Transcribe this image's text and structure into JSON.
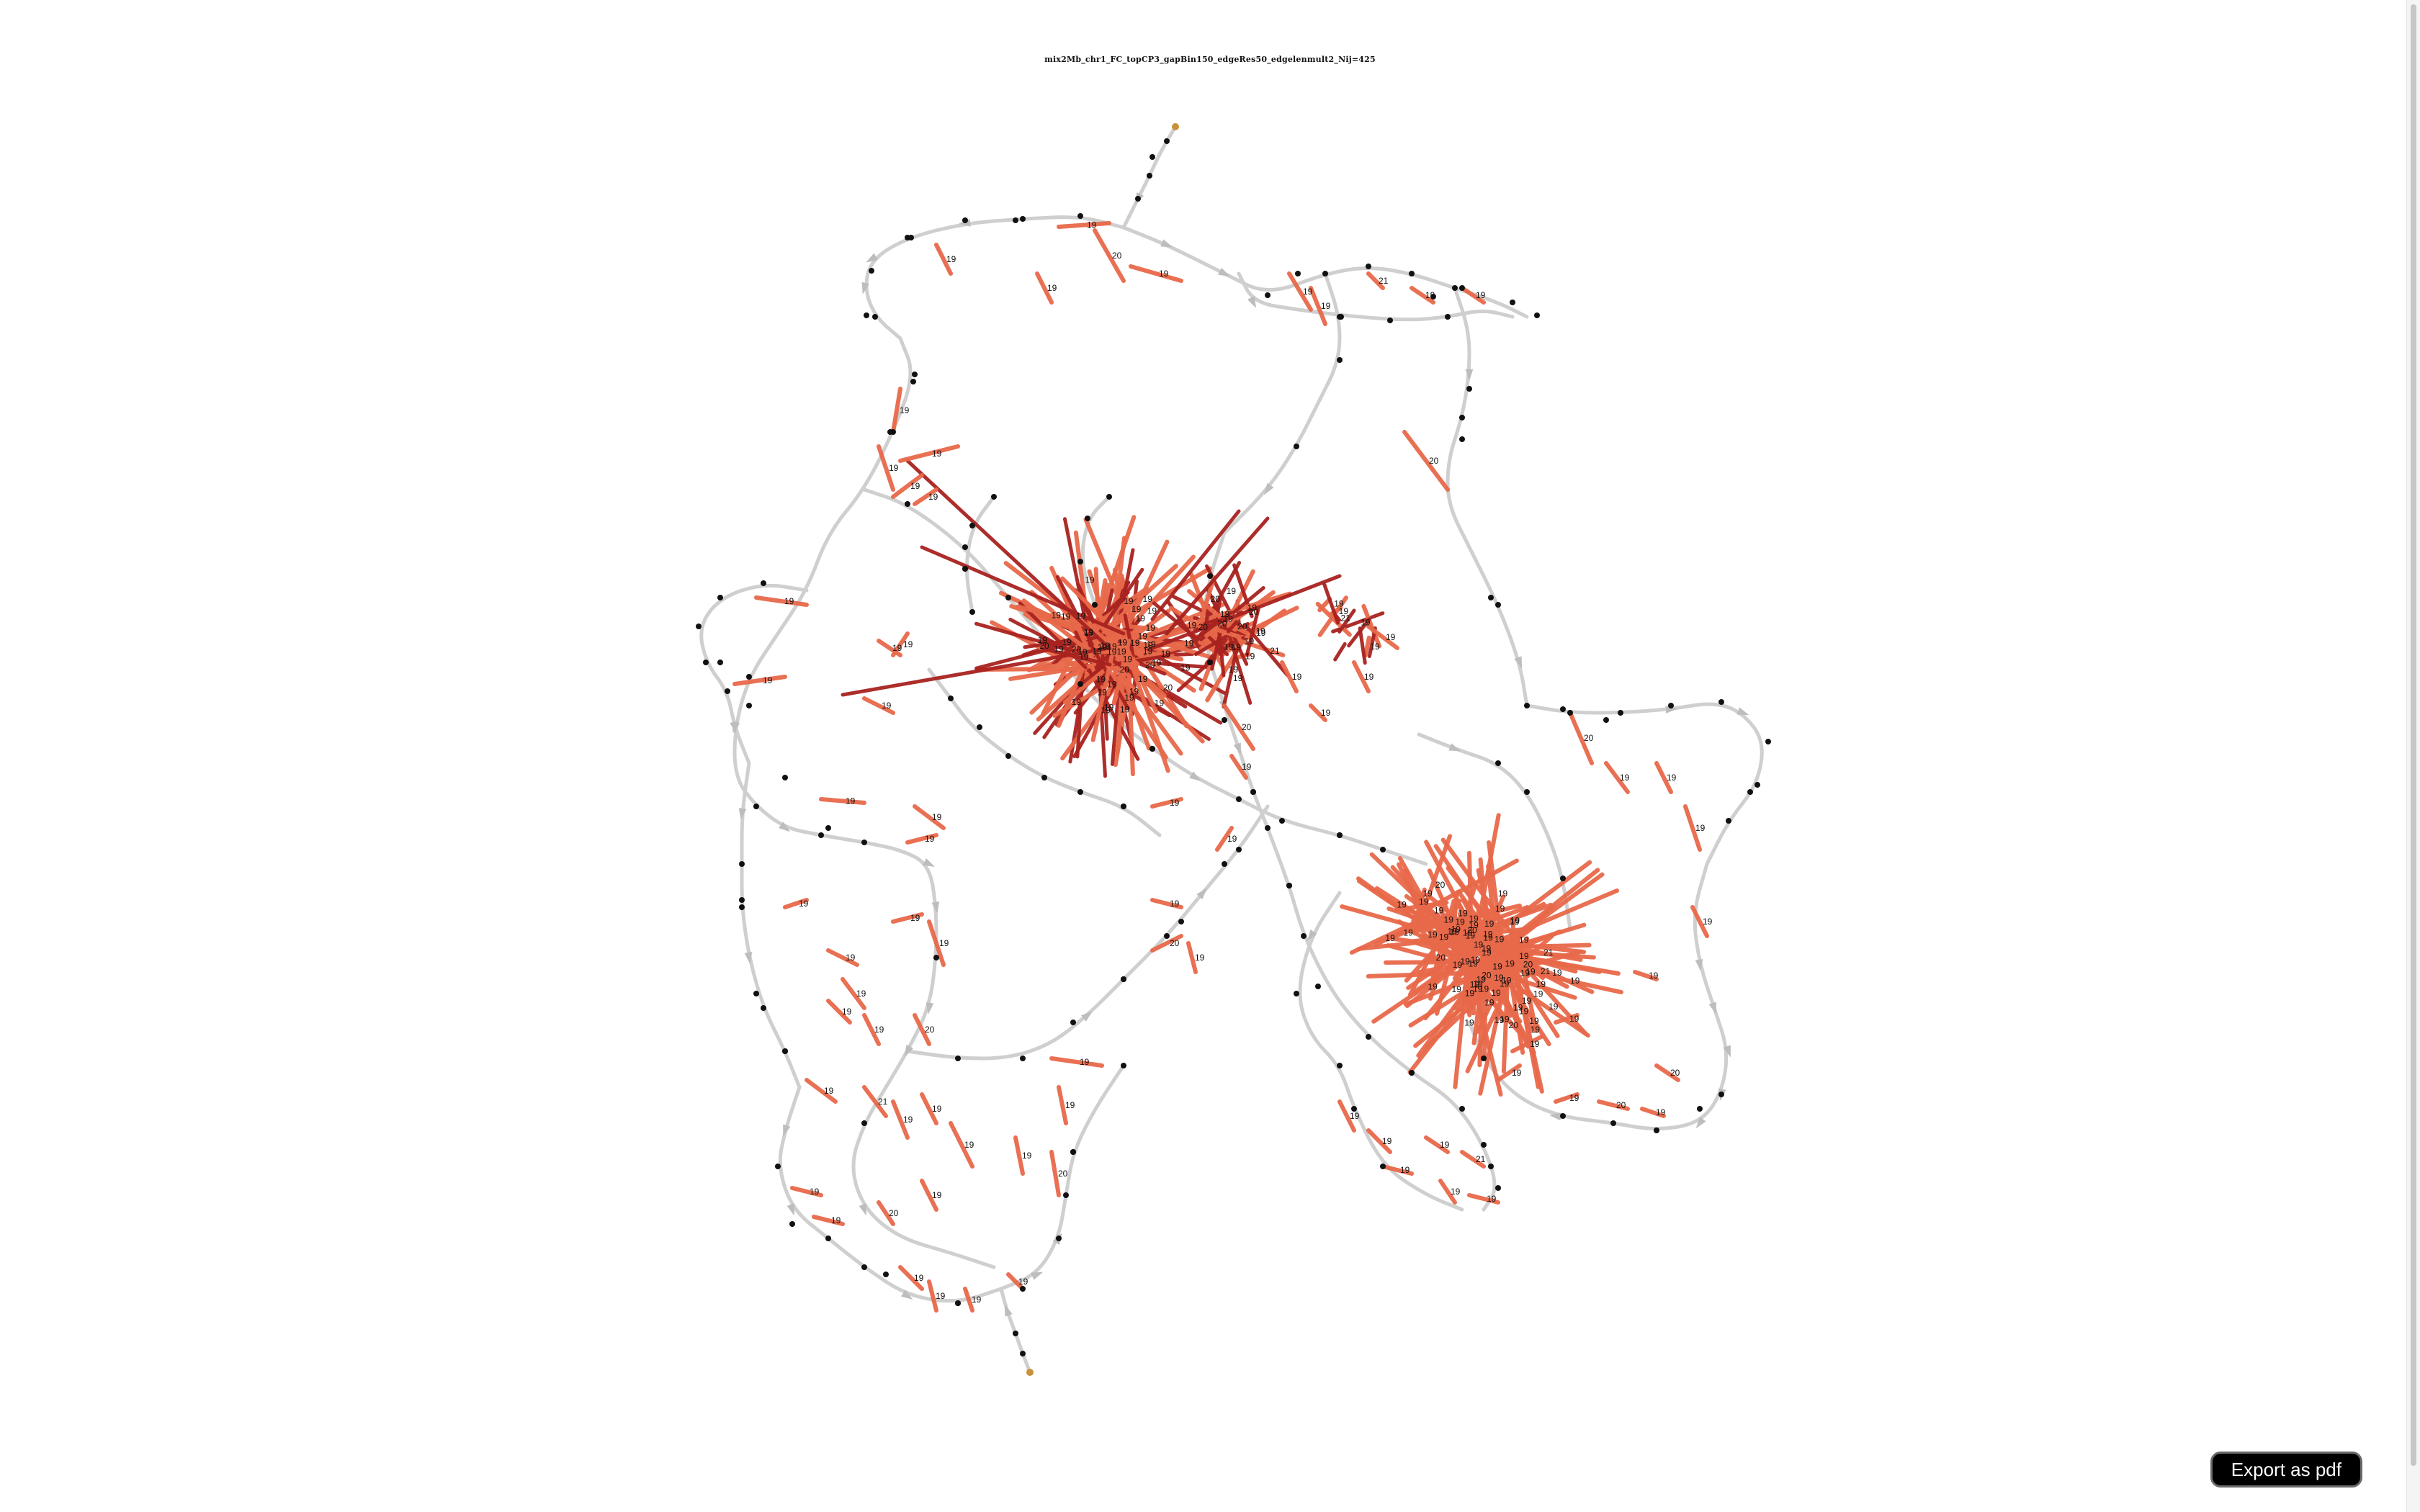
{
  "title": "mix2Mb_chr1_FC_topCP3_gapBin150_edgeRes50_edgelenmult2_Nij=425",
  "export_button": {
    "label": "Export as pdf"
  },
  "colors": {
    "background": "#ffffff",
    "grey_edge": "#cfcfcf",
    "edge_light": "#e8694a",
    "edge_dark": "#a8221f",
    "node": "#111111",
    "terminal_node": "#c8913a",
    "button_bg": "#000000",
    "button_text": "#ffffff"
  },
  "edge_label_values": [
    "19",
    "20",
    "21"
  ]
}
